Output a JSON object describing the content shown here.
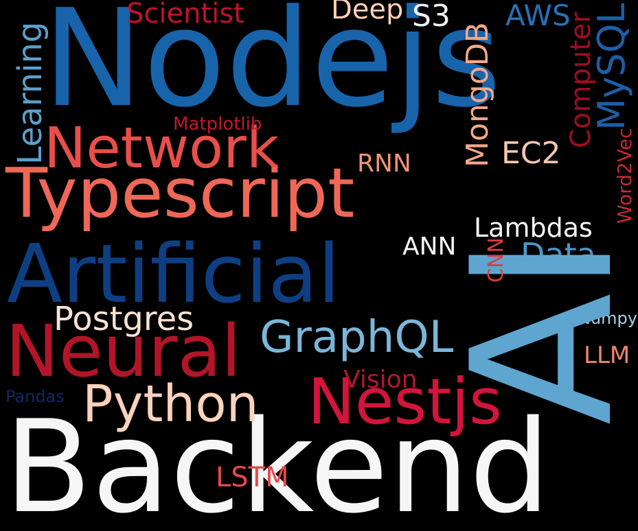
{
  "words": [
    {
      "key": "backend",
      "text": "Backend",
      "color": "#f6f6f6"
    },
    {
      "key": "nodejs",
      "text": "Nodejs",
      "color": "#1764ab"
    },
    {
      "key": "ai",
      "text": "AI",
      "color": "#5ea6d0"
    },
    {
      "key": "artificial",
      "text": "Artificial",
      "color": "#0e3f83"
    },
    {
      "key": "typescript",
      "text": "Typescript",
      "color": "#ee6757"
    },
    {
      "key": "network",
      "text": "Network",
      "color": "#e84f4a"
    },
    {
      "key": "neural",
      "text": "Neural",
      "color": "#b11527"
    },
    {
      "key": "nestjs",
      "text": "Nestjs",
      "color": "#d2153a"
    },
    {
      "key": "python",
      "text": "Python",
      "color": "#fbd2bc"
    },
    {
      "key": "graphql",
      "text": "GraphQL",
      "color": "#7ab6d9"
    },
    {
      "key": "postgres",
      "text": "Postgres",
      "color": "#fbe3d4"
    },
    {
      "key": "scientist",
      "text": "Scientist",
      "color": "#c1122a"
    },
    {
      "key": "deep",
      "text": "Deep",
      "color": "#fcd0b8"
    },
    {
      "key": "s3",
      "text": "S3",
      "color": "#f2f2f2"
    },
    {
      "key": "aws",
      "text": "AWS",
      "color": "#2871b4"
    },
    {
      "key": "learning",
      "text": "Learning",
      "color": "#5aa0cc"
    },
    {
      "key": "mongodb",
      "text": "MongoDB",
      "color": "#f4a88b"
    },
    {
      "key": "mysql",
      "text": "MySQL",
      "color": "#1c5fa6"
    },
    {
      "key": "computer",
      "text": "Computer",
      "color": "#9e0d23"
    },
    {
      "key": "matplotlib",
      "text": "Matplotlib",
      "color": "#c01a2b"
    },
    {
      "key": "ec2",
      "text": "EC2",
      "color": "#f8c6ae"
    },
    {
      "key": "rnn",
      "text": "RNN",
      "color": "#f09378"
    },
    {
      "key": "word2vec",
      "text": "Word2Vec",
      "color": "#c22a2f"
    },
    {
      "key": "lambdas",
      "text": "Lambdas",
      "color": "#fbfbfb"
    },
    {
      "key": "ann",
      "text": "ANN",
      "color": "#f7f7f7"
    },
    {
      "key": "data",
      "text": "Data",
      "color": "#4a97c9"
    },
    {
      "key": "cnn",
      "text": "CNN",
      "color": "#dd3b3c"
    },
    {
      "key": "numpy",
      "text": "Numpy",
      "color": "#a9d0e6"
    },
    {
      "key": "llm",
      "text": "LLM",
      "color": "#f2866b"
    },
    {
      "key": "vision",
      "text": "Vision",
      "color": "#b2182b"
    },
    {
      "key": "pandas",
      "text": "Pandas",
      "color": "#0c2c62"
    },
    {
      "key": "lstm",
      "text": "LSTM",
      "color": "#e54a4a"
    }
  ]
}
